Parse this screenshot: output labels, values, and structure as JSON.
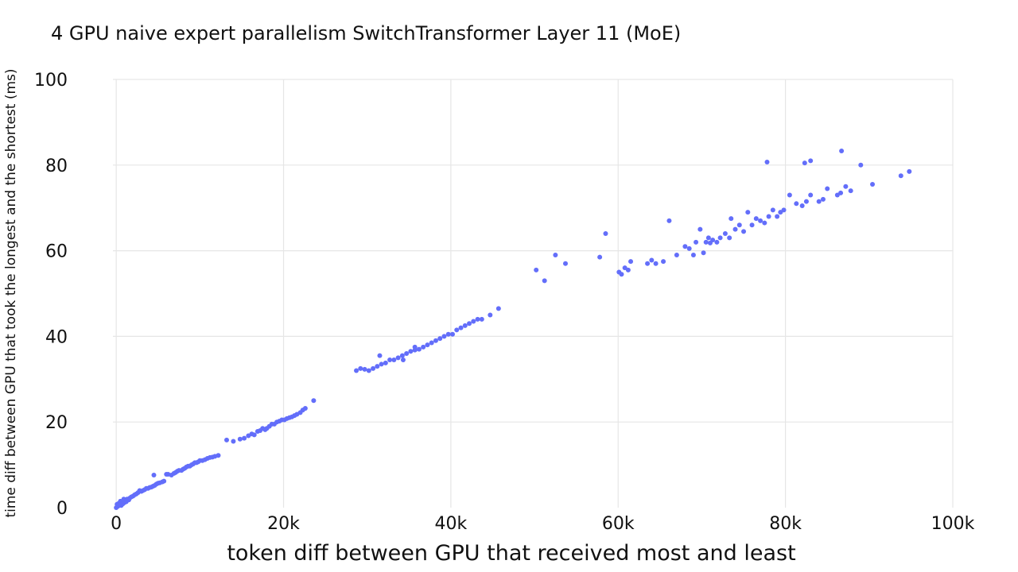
{
  "chart_data": {
    "type": "scatter",
    "title": "4 GPU naive expert parallelism SwitchTransformer Layer 11 (MoE)",
    "xlabel": "token diff between GPU that received most and least",
    "ylabel": "time diff between GPU that took the longest and the shortest (ms)",
    "xlim": [
      -8000,
      100000
    ],
    "ylim": [
      0,
      100
    ],
    "x_ticks": [
      0,
      20000,
      40000,
      60000,
      80000,
      100000
    ],
    "x_tick_labels": [
      "0",
      "20k",
      "40k",
      "60k",
      "80k",
      "100k"
    ],
    "y_ticks": [
      0,
      20,
      40,
      60,
      80,
      100
    ],
    "y_tick_labels": [
      "0",
      "20",
      "40",
      "60",
      "80",
      "100"
    ],
    "grid": true,
    "marker_color": "#636efa",
    "x": [
      0,
      100,
      200,
      300,
      500,
      600,
      700,
      900,
      1000,
      1100,
      1300,
      1500,
      1600,
      1800,
      2000,
      2200,
      2400,
      2600,
      2800,
      3000,
      3200,
      3400,
      3600,
      3800,
      4000,
      4200,
      4400,
      4600,
      4800,
      5000,
      5200,
      5500,
      5700,
      6000,
      300,
      800,
      1200,
      4500,
      6200,
      6600,
      6900,
      7100,
      7300,
      7500,
      7800,
      8000,
      8200,
      8400,
      8600,
      8800,
      9000,
      9200,
      9400,
      9600,
      9800,
      10000,
      10300,
      10600,
      10900,
      11200,
      11500,
      11800,
      12200,
      13200,
      14000,
      14800,
      15300,
      15800,
      16200,
      16500,
      16900,
      17200,
      17500,
      17800,
      18000,
      18300,
      18600,
      18900,
      19200,
      19500,
      19800,
      20100,
      20400,
      20700,
      21000,
      21300,
      21600,
      22000,
      22300,
      22600,
      23600,
      28700,
      29200,
      29700,
      30200,
      30700,
      31200,
      31700,
      32200,
      32700,
      33200,
      33700,
      34200,
      34700,
      35200,
      35700,
      36200,
      36700,
      37200,
      37700,
      38200,
      38700,
      39200,
      39700,
      40200,
      40700,
      41200,
      41700,
      42200,
      42700,
      43200,
      43700,
      44700,
      45700,
      31500,
      34300,
      35700,
      50200,
      51200,
      52500,
      53700,
      57800,
      58500,
      60100,
      60400,
      60800,
      61200,
      61500,
      63500,
      64000,
      64500,
      65400,
      66100,
      67000,
      68000,
      68500,
      69000,
      69300,
      69800,
      70200,
      70500,
      70800,
      71000,
      71300,
      71800,
      72200,
      72800,
      73300,
      73500,
      74000,
      74500,
      75000,
      75500,
      76000,
      76500,
      77000,
      77500,
      78000,
      78500,
      79000,
      79400,
      79800,
      80500,
      81300,
      82000,
      82500,
      83000,
      84000,
      84500,
      85000,
      86200,
      86600,
      87200,
      87800,
      89000,
      90400,
      93800,
      94800,
      77800,
      82300,
      83000,
      86700
    ],
    "y": [
      0,
      0.8,
      0.3,
      0.5,
      1.5,
      0.5,
      0.8,
      2,
      1.2,
      1.5,
      2,
      1.8,
      2.2,
      2.5,
      2.7,
      3,
      3.2,
      3.5,
      4,
      3.8,
      4,
      4.2,
      4.5,
      4.5,
      4.7,
      4.8,
      5,
      5.2,
      5.5,
      5.7,
      5.8,
      6,
      6.2,
      7.8,
      1,
      0.9,
      1.4,
      7.6,
      7.8,
      7.6,
      8,
      8.2,
      8.5,
      8.7,
      8.7,
      9,
      9.2,
      9.5,
      9.7,
      9.7,
      10,
      10.2,
      10.5,
      10.5,
      10.7,
      11,
      11,
      11.2,
      11.5,
      11.7,
      11.8,
      12,
      12.2,
      15.8,
      15.5,
      16,
      16.2,
      16.8,
      17.2,
      17,
      17.8,
      18,
      18.5,
      18.2,
      18.5,
      19,
      19.5,
      19.5,
      20,
      20.2,
      20.5,
      20.5,
      20.8,
      21,
      21.2,
      21.5,
      21.8,
      22.2,
      22.8,
      23.2,
      25,
      32,
      32.5,
      32.3,
      32,
      32.5,
      33,
      33.5,
      33.8,
      34.5,
      34.5,
      35,
      35.5,
      36,
      36.5,
      36.8,
      37,
      37.5,
      38,
      38.5,
      39,
      39.5,
      40,
      40.5,
      40.5,
      41.5,
      42,
      42.5,
      43,
      43.5,
      44,
      44,
      45,
      46.5,
      35.5,
      34.5,
      37.5,
      55.5,
      53,
      59,
      57,
      58.5,
      64,
      55,
      54.5,
      56,
      55.5,
      57.5,
      57,
      57.8,
      57,
      57.5,
      67,
      59,
      61,
      60.5,
      59,
      62,
      65,
      59.5,
      62,
      63,
      61.8,
      62.5,
      62,
      63,
      64,
      63,
      67.5,
      65,
      66,
      64.5,
      69,
      66,
      67.5,
      67,
      66.5,
      68,
      69.5,
      68,
      69,
      69.5,
      73,
      71,
      70.5,
      71.5,
      73,
      71.5,
      72,
      74.5,
      73,
      73.5,
      75,
      74,
      80,
      75.5,
      77.5,
      78.5,
      80.7,
      80.5,
      81,
      83.3
    ]
  }
}
